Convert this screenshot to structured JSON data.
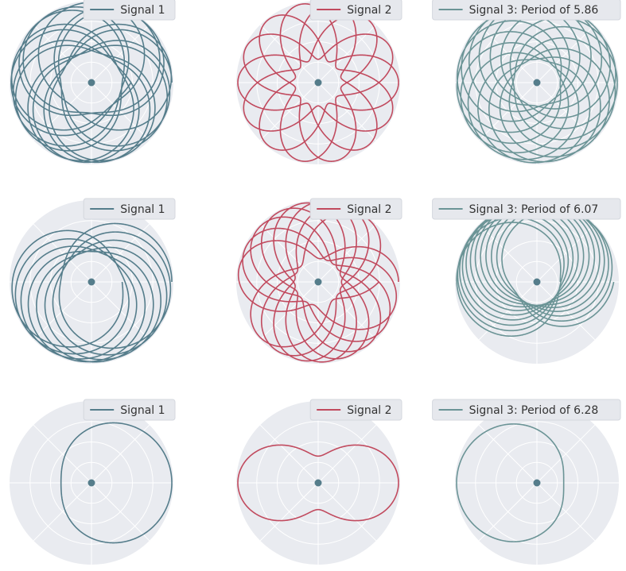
{
  "colors": {
    "signal_1": "#557d8b",
    "signal_2": "#c14a5e",
    "signal_3": "#6b9496",
    "dot": "#557d8b",
    "panel_bg": "#e9ebf0",
    "grid": "#ffffff"
  },
  "chart_data": [
    {
      "type": "line",
      "subtype": "polar",
      "row": 1,
      "col": 1,
      "legend": "Signal 1",
      "series_key": "signal_1",
      "amp": 0.45,
      "freq": 1.28,
      "phase": 0.0,
      "turns": 13,
      "dot_r": 0.0
    },
    {
      "type": "line",
      "subtype": "polar",
      "row": 1,
      "col": 2,
      "legend": "Signal 2",
      "series_key": "signal_2",
      "amp": 0.55,
      "freq": 2.8,
      "phase": 0.0,
      "turns": 6,
      "dot_r": 0.0
    },
    {
      "type": "line",
      "subtype": "polar",
      "row": 1,
      "col": 3,
      "legend": "Signal 3: Period of 5.86",
      "series_key": "signal_3",
      "amp": 0.55,
      "freq": 1.072,
      "phase": 0.0,
      "turns": 14,
      "dot_r": 0.0
    },
    {
      "type": "line",
      "subtype": "polar",
      "row": 2,
      "col": 1,
      "legend": "Signal 1",
      "series_key": "signal_1",
      "amp": 0.45,
      "freq": 1.06,
      "phase": 0.0,
      "turns": 8,
      "dot_r": 0.0
    },
    {
      "type": "line",
      "subtype": "polar",
      "row": 2,
      "col": 2,
      "legend": "Signal 2",
      "series_key": "signal_2",
      "amp": 0.55,
      "freq": 2.1,
      "phase": 0.0,
      "turns": 8,
      "dot_r": 0.0
    },
    {
      "type": "line",
      "subtype": "polar",
      "row": 2,
      "col": 3,
      "legend": "Signal 3: Period of 6.07",
      "series_key": "signal_3",
      "amp": 0.55,
      "freq": 1.035,
      "phase": 3.14159,
      "turns": 12,
      "dot_r": 0.0
    },
    {
      "type": "line",
      "subtype": "polar",
      "row": 3,
      "col": 1,
      "legend": "Signal 1",
      "series_key": "signal_1",
      "amp": 0.45,
      "freq": 1.0,
      "phase": 0.0,
      "turns": 1,
      "dot_r": 0.0
    },
    {
      "type": "line",
      "subtype": "polar",
      "row": 3,
      "col": 2,
      "legend": "Signal 2",
      "series_key": "signal_2",
      "amp": 0.5,
      "freq": 2.0,
      "phase": 0.0,
      "turns": 1,
      "dot_r": 0.0
    },
    {
      "type": "line",
      "subtype": "polar",
      "row": 3,
      "col": 3,
      "legend": "Signal 3: Period of 6.28",
      "series_key": "signal_3",
      "amp": 0.5,
      "freq": 1.0,
      "phase": 3.14159,
      "turns": 1,
      "dot_r": 0.0
    }
  ]
}
